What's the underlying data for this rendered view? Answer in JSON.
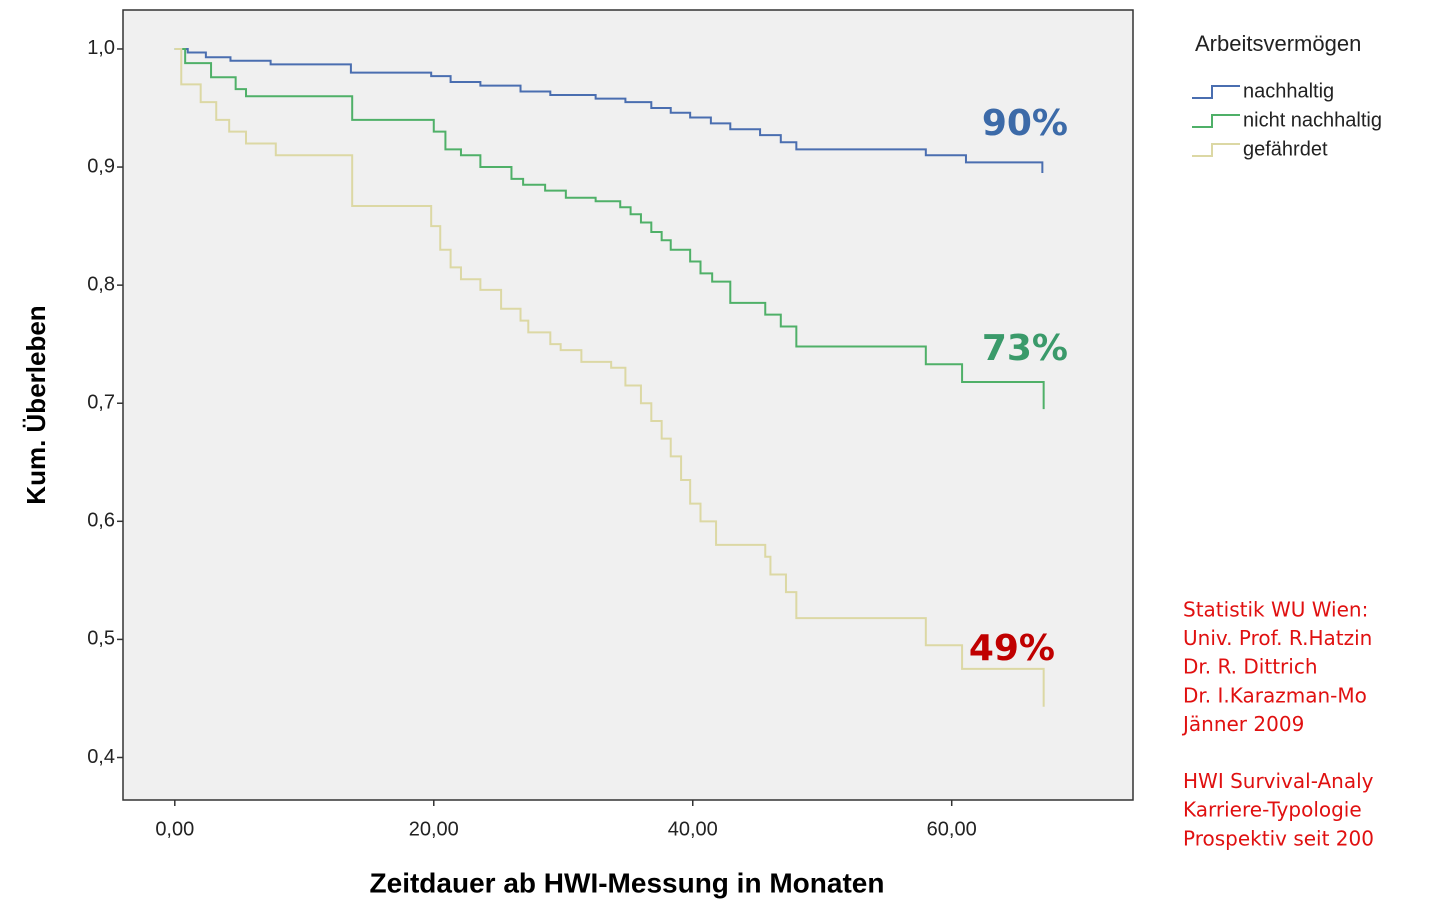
{
  "chart_data": {
    "type": "step",
    "xlabel": "Zeitdauer ab HWI-Messung in Monaten",
    "ylabel": "Kum. Überleben",
    "legend_title": "Arbeitsvermögen",
    "xlim": [
      -4,
      74
    ],
    "ylim": [
      0.364,
      1.033
    ],
    "xticks": [
      {
        "value": 0,
        "label": "0,00"
      },
      {
        "value": 20,
        "label": "20,00"
      },
      {
        "value": 40,
        "label": "40,00"
      },
      {
        "value": 60,
        "label": "60,00"
      }
    ],
    "yticks": [
      {
        "value": 0.4,
        "label": "0,4"
      },
      {
        "value": 0.5,
        "label": "0,5"
      },
      {
        "value": 0.6,
        "label": "0,6"
      },
      {
        "value": 0.7,
        "label": "0,7"
      },
      {
        "value": 0.8,
        "label": "0,8"
      },
      {
        "value": 0.9,
        "label": "0,9"
      },
      {
        "value": 1.0,
        "label": "1,0"
      }
    ],
    "series": [
      {
        "name": "nachhaltig",
        "color": "#4a6eb0",
        "x": [
          0,
          1,
          2.4,
          4.3,
          7.4,
          13.6,
          19.8,
          21.3,
          23.6,
          26.7,
          29,
          32.5,
          34.8,
          36.8,
          38.3,
          39.8,
          41.4,
          42.9,
          45.2,
          46.8,
          48,
          58,
          61.1,
          67
        ],
        "y": [
          1.0,
          0.997,
          0.993,
          0.99,
          0.987,
          0.98,
          0.977,
          0.972,
          0.969,
          0.964,
          0.961,
          0.958,
          0.955,
          0.95,
          0.946,
          0.942,
          0.937,
          0.932,
          0.927,
          0.921,
          0.915,
          0.91,
          0.904,
          0.895
        ]
      },
      {
        "name": "nicht nachhaltig",
        "color": "#4fb068",
        "x": [
          0,
          0.8,
          2.8,
          4.7,
          5.5,
          13.7,
          20,
          20.9,
          22.1,
          23.6,
          26,
          26.9,
          28.6,
          30.2,
          32.5,
          34.4,
          35.2,
          36,
          36.8,
          37.6,
          38.3,
          39.8,
          40.6,
          41.5,
          42.9,
          45.6,
          46.8,
          48,
          58,
          60.8,
          67.1
        ],
        "y": [
          1.0,
          0.988,
          0.976,
          0.966,
          0.96,
          0.94,
          0.93,
          0.915,
          0.91,
          0.9,
          0.89,
          0.885,
          0.88,
          0.874,
          0.871,
          0.866,
          0.86,
          0.853,
          0.845,
          0.838,
          0.83,
          0.82,
          0.81,
          0.803,
          0.785,
          0.775,
          0.765,
          0.748,
          0.733,
          0.718,
          0.695
        ]
      },
      {
        "name": "gefährdet",
        "color": "#dcd8a4",
        "x": [
          0,
          0.5,
          2,
          3.2,
          4.2,
          5.5,
          7.8,
          13.7,
          19.8,
          20.5,
          21.3,
          22.1,
          23.6,
          25.2,
          26.7,
          27.3,
          29,
          29.8,
          31.4,
          33.7,
          34.8,
          36,
          36.8,
          37.6,
          38.3,
          39.1,
          39.8,
          40.6,
          41.8,
          45.6,
          46,
          47.2,
          48,
          58,
          60.8,
          67.1
        ],
        "y": [
          1.0,
          0.97,
          0.955,
          0.94,
          0.93,
          0.92,
          0.91,
          0.867,
          0.85,
          0.83,
          0.815,
          0.805,
          0.796,
          0.78,
          0.77,
          0.76,
          0.75,
          0.745,
          0.735,
          0.73,
          0.715,
          0.7,
          0.685,
          0.67,
          0.655,
          0.635,
          0.615,
          0.6,
          0.58,
          0.57,
          0.555,
          0.54,
          0.518,
          0.495,
          0.475,
          0.443
        ]
      }
    ],
    "annotations": [
      {
        "text": "90%",
        "color": "#3c6aa8"
      },
      {
        "text": "73%",
        "color": "#3a9a6a"
      },
      {
        "text": "49%",
        "color": "#c00000"
      }
    ],
    "notes": [
      "Statistik WU Wien:",
      "Univ. Prof. R.Hatzin",
      "Dr. R. Dittrich",
      "Dr. I.Karazman-Mo",
      "Jänner 2009",
      "",
      "HWI Survival-Analy",
      "Karriere-Typologie",
      "Prospektiv seit 200"
    ]
  }
}
